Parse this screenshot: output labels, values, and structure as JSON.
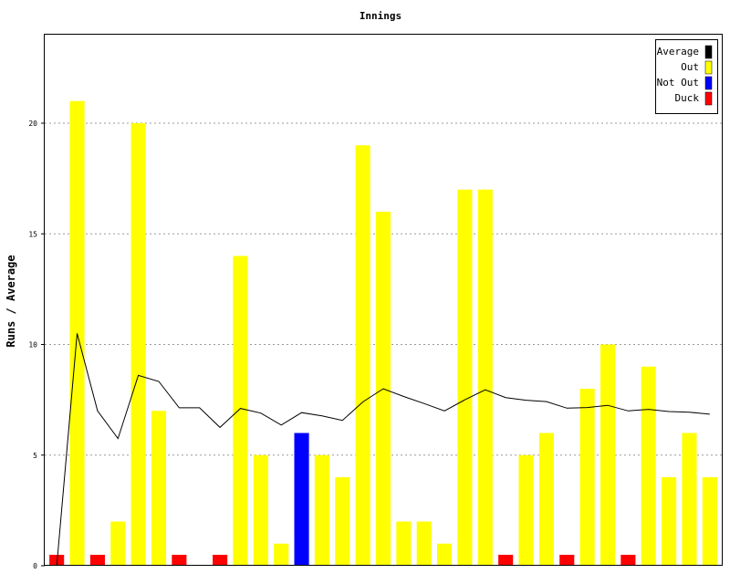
{
  "chart_data": {
    "type": "bar",
    "title": "Innings",
    "ylabel": "Runs / Average",
    "xlabel": "",
    "ylim": [
      0,
      24
    ],
    "yticks": [
      0,
      5,
      10,
      15,
      20
    ],
    "grid": true,
    "legend_position": "top-right",
    "legend": [
      {
        "name": "Average",
        "color": "#000000"
      },
      {
        "name": "Out",
        "color": "#ffff00"
      },
      {
        "name": "Not Out",
        "color": "#0000ff"
      },
      {
        "name": "Duck",
        "color": "#ff0000"
      }
    ],
    "innings": [
      {
        "runs": 0,
        "kind": "Duck"
      },
      {
        "runs": 21,
        "kind": "Out"
      },
      {
        "runs": 0,
        "kind": "Duck"
      },
      {
        "runs": 2,
        "kind": "Out"
      },
      {
        "runs": 20,
        "kind": "Out"
      },
      {
        "runs": 7,
        "kind": "Out"
      },
      {
        "runs": 0,
        "kind": "Duck"
      },
      {
        "runs": null,
        "kind": "None"
      },
      {
        "runs": 0,
        "kind": "Duck"
      },
      {
        "runs": 14,
        "kind": "Out"
      },
      {
        "runs": 5,
        "kind": "Out"
      },
      {
        "runs": 1,
        "kind": "Out"
      },
      {
        "runs": 6,
        "kind": "Not Out"
      },
      {
        "runs": 5,
        "kind": "Out"
      },
      {
        "runs": 4,
        "kind": "Out"
      },
      {
        "runs": 19,
        "kind": "Out"
      },
      {
        "runs": 16,
        "kind": "Out"
      },
      {
        "runs": 2,
        "kind": "Out"
      },
      {
        "runs": 2,
        "kind": "Out"
      },
      {
        "runs": 1,
        "kind": "Out"
      },
      {
        "runs": 17,
        "kind": "Out"
      },
      {
        "runs": 17,
        "kind": "Out"
      },
      {
        "runs": 0,
        "kind": "Duck"
      },
      {
        "runs": 5,
        "kind": "Out"
      },
      {
        "runs": 6,
        "kind": "Out"
      },
      {
        "runs": 0,
        "kind": "Duck"
      },
      {
        "runs": 8,
        "kind": "Out"
      },
      {
        "runs": 10,
        "kind": "Out"
      },
      {
        "runs": 0,
        "kind": "Duck"
      },
      {
        "runs": 9,
        "kind": "Out"
      },
      {
        "runs": 4,
        "kind": "Out"
      },
      {
        "runs": 6,
        "kind": "Out"
      },
      {
        "runs": 4,
        "kind": "Out"
      }
    ],
    "average": [
      0,
      10.5,
      7.0,
      5.75,
      8.6,
      8.33,
      7.14,
      7.14,
      6.25,
      7.11,
      6.9,
      6.36,
      6.92,
      6.77,
      6.57,
      7.4,
      8.0,
      7.65,
      7.33,
      7.0,
      7.5,
      7.95,
      7.6,
      7.48,
      7.42,
      7.12,
      7.15,
      7.25,
      7.0,
      7.07,
      6.97,
      6.94,
      6.85
    ]
  }
}
